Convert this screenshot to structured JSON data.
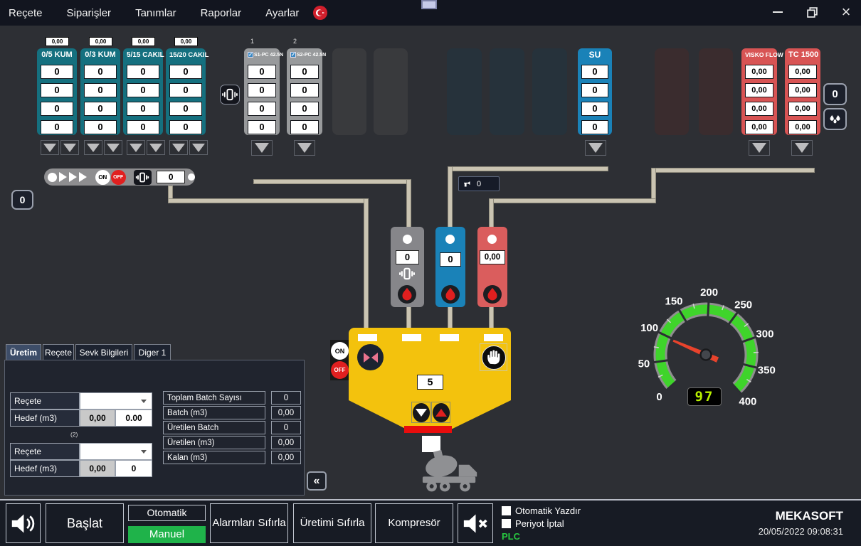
{
  "menu": {
    "items": [
      "Reçete",
      "Siparişler",
      "Tanımlar",
      "Raporlar",
      "Ayarlar"
    ]
  },
  "aggregates": [
    {
      "top": "0,00",
      "name": "0/5 KUM",
      "cells": [
        "0",
        "0",
        "0",
        "0"
      ]
    },
    {
      "top": "0,00",
      "name": "0/3 KUM",
      "cells": [
        "0",
        "0",
        "0",
        "0"
      ]
    },
    {
      "top": "0,00",
      "name": "5/15 CAKIL",
      "cells": [
        "0",
        "0",
        "0",
        "0"
      ]
    },
    {
      "top": "0,00",
      "name": "15/20 CAKIL",
      "cells": [
        "0",
        "0",
        "0",
        "0"
      ]
    }
  ],
  "cement_silos": [
    {
      "number": "1",
      "name": "S1-PC 42.5N",
      "cells": [
        "0",
        "0",
        "0",
        "0"
      ]
    },
    {
      "number": "2",
      "name": "S2-PC 42.5N",
      "cells": [
        "0",
        "0",
        "0",
        "0"
      ]
    }
  ],
  "water_silo": {
    "name": "SU",
    "cells": [
      "0",
      "0",
      "0",
      "0"
    ]
  },
  "admixture_silos": [
    {
      "name": "VISKO FLOW",
      "cells": [
        "0,00",
        "0,00",
        "0,00",
        "0,00"
      ]
    },
    {
      "name": "TC 1500",
      "cells": [
        "0,00",
        "0,00",
        "0,00",
        "0,00"
      ]
    }
  ],
  "right_counter": "0",
  "conveyor": {
    "on": "ON",
    "off": "OFF",
    "value": "0"
  },
  "left_counter": "0",
  "water_meter": "0",
  "scales": {
    "cement": "0",
    "water": "0",
    "admixture": "0,00"
  },
  "mixer": {
    "on": "ON",
    "off": "OFF",
    "batch_display": "5"
  },
  "gauge": {
    "min": 0,
    "max": 400,
    "value": 97,
    "display": "97",
    "ticks": [
      0,
      50,
      100,
      150,
      200,
      250,
      300,
      350,
      400
    ]
  },
  "panel": {
    "tabs": [
      "Üretim",
      "Reçete",
      "Sevk Bilgileri",
      "Diger 1"
    ],
    "recipe1": {
      "label": "Reçete",
      "hedef_label": "Hedef (m3)",
      "val1": "0,00",
      "val2": "0.00"
    },
    "group2_label": "(2)",
    "recipe2": {
      "label": "Reçete",
      "hedef_label": "Hedef (m3)",
      "val1": "0,00",
      "val2": "0"
    },
    "stats": [
      {
        "label": "Toplam Batch Sayısı",
        "value": "0"
      },
      {
        "label": "Batch (m3)",
        "value": "0,00"
      },
      {
        "label": "Üretilen Batch",
        "value": "0"
      },
      {
        "label": "Üretilen (m3)",
        "value": "0,00"
      },
      {
        "label": "Kalan (m3)",
        "value": "0,00"
      }
    ],
    "collapse": "«"
  },
  "bottom": {
    "start": "Başlat",
    "auto": "Otomatik",
    "manual": "Manuel",
    "reset_alarms": "Alarmları Sıfırla",
    "reset_production": "Üretimi Sıfırla",
    "compressor": "Kompresör",
    "checkbox1": "Otomatik Yazdır",
    "checkbox2": "Periyot İptal",
    "plc": "PLC"
  },
  "brand": {
    "name": "MEKASOFT",
    "datetime": "20/05/2022 09:08:31"
  },
  "colors": {
    "teal": "#15707f",
    "water_blue": "#1a82b8",
    "admix_red": "#d85454",
    "mixer_yellow": "#f3c20d",
    "pipe": "#cac4b2",
    "manual_green": "#1fb34a",
    "gauge_green": "#3fd42b",
    "needle_red": "#e8432c",
    "plc_green": "#27c840"
  }
}
